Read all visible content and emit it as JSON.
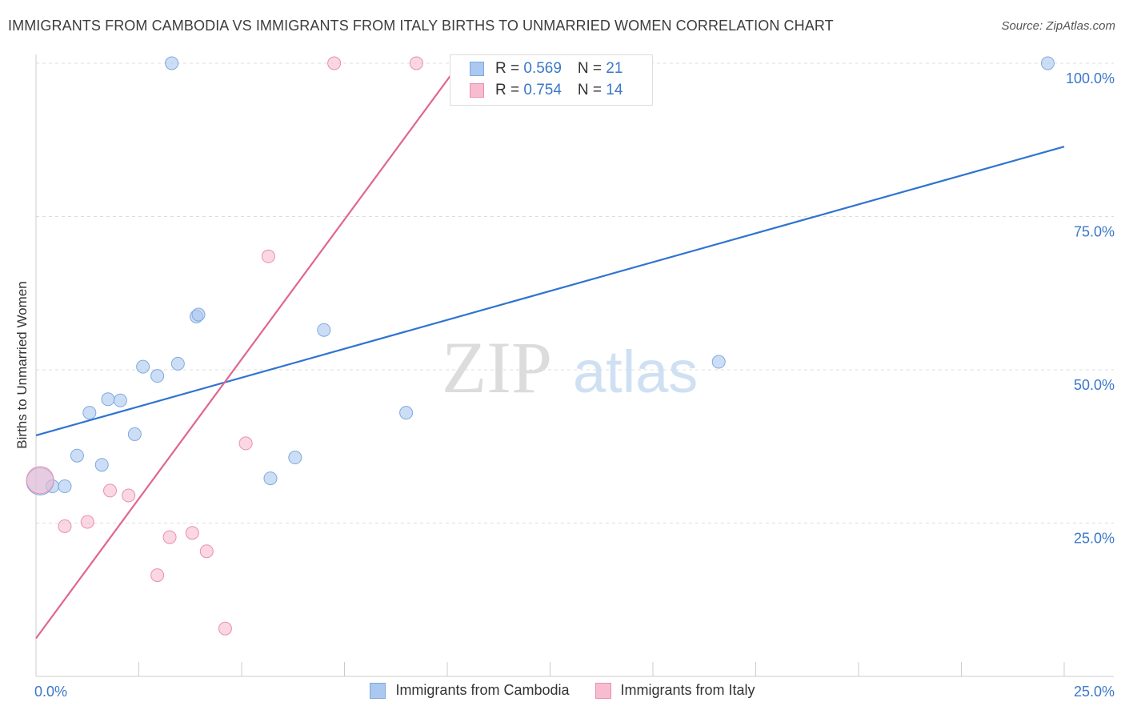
{
  "title": "IMMIGRANTS FROM CAMBODIA VS IMMIGRANTS FROM ITALY BIRTHS TO UNMARRIED WOMEN CORRELATION CHART",
  "source": "Source: ZipAtlas.com",
  "watermark": {
    "zip": "ZIP",
    "atlas": "atlas"
  },
  "legend": [
    {
      "r_label": "R = ",
      "r_value": "0.569",
      "n_label": "N = ",
      "n_value": "21",
      "color": "#aac8f0",
      "border": "#7fa9de"
    },
    {
      "r_label": "R = ",
      "r_value": "0.754",
      "n_label": "N = ",
      "n_value": "14",
      "color": "#f7bcd0",
      "border": "#e98fae"
    }
  ],
  "bottom_legend": [
    "Immigrants from Cambodia",
    "Immigrants from Italy"
  ],
  "chart_data": {
    "type": "scatter",
    "title": "IMMIGRANTS FROM CAMBODIA VS IMMIGRANTS FROM ITALY BIRTHS TO UNMARRIED WOMEN CORRELATION CHART",
    "xlabel": "",
    "ylabel": "Births to Unmarried Women",
    "xlim": [
      0,
      25
    ],
    "ylim": [
      0,
      102
    ],
    "x_tick_labels": [
      {
        "value": 0,
        "label": "0.0%"
      },
      {
        "value": 25,
        "label": "25.0%"
      }
    ],
    "y_tick_labels": [
      {
        "value": 100,
        "label": "100.0%"
      },
      {
        "value": 75,
        "label": "75.0%"
      },
      {
        "value": 50,
        "label": "50.0%"
      },
      {
        "value": 25,
        "label": "25.0%"
      }
    ],
    "series": [
      {
        "name": "Immigrants from Cambodia",
        "color": "#aac8f0",
        "stroke": "#7fa9de",
        "line_color": "#2f74d0",
        "points": [
          {
            "x": 0.1,
            "y": 31.8,
            "big": true
          },
          {
            "x": 0.4,
            "y": 31.0
          },
          {
            "x": 0.7,
            "y": 31.0
          },
          {
            "x": 1.0,
            "y": 36.0
          },
          {
            "x": 1.3,
            "y": 43.0
          },
          {
            "x": 1.6,
            "y": 34.5
          },
          {
            "x": 1.75,
            "y": 45.2
          },
          {
            "x": 2.05,
            "y": 45.0
          },
          {
            "x": 2.4,
            "y": 39.5
          },
          {
            "x": 2.6,
            "y": 50.5
          },
          {
            "x": 2.95,
            "y": 49.0
          },
          {
            "x": 3.3,
            "y": 100.0
          },
          {
            "x": 3.45,
            "y": 51.0
          },
          {
            "x": 3.9,
            "y": 58.7
          },
          {
            "x": 3.95,
            "y": 59.0
          },
          {
            "x": 5.7,
            "y": 32.3
          },
          {
            "x": 6.3,
            "y": 35.7
          },
          {
            "x": 7.0,
            "y": 56.5
          },
          {
            "x": 9.0,
            "y": 43.0
          },
          {
            "x": 16.6,
            "y": 51.3
          },
          {
            "x": 24.6,
            "y": 100.0
          }
        ],
        "trend": {
          "x0": 0,
          "y0": 39.3,
          "x1": 25,
          "y1": 86.4
        }
      },
      {
        "name": "Immigrants from Italy",
        "color": "#f7bcd0",
        "stroke": "#e98fae",
        "line_color": "#e06690",
        "points": [
          {
            "x": 0.1,
            "y": 32.0,
            "big": true
          },
          {
            "x": 0.7,
            "y": 24.5
          },
          {
            "x": 1.25,
            "y": 25.2
          },
          {
            "x": 1.8,
            "y": 30.3
          },
          {
            "x": 2.25,
            "y": 29.5
          },
          {
            "x": 2.95,
            "y": 16.5
          },
          {
            "x": 3.25,
            "y": 22.7
          },
          {
            "x": 3.8,
            "y": 23.4
          },
          {
            "x": 4.15,
            "y": 20.4
          },
          {
            "x": 4.6,
            "y": 7.8
          },
          {
            "x": 5.1,
            "y": 38.0
          },
          {
            "x": 5.65,
            "y": 68.5
          },
          {
            "x": 7.25,
            "y": 100.0
          },
          {
            "x": 9.25,
            "y": 100.0
          }
        ],
        "trend": {
          "x0": 0,
          "y0": 6.2,
          "x1": 10.3,
          "y1": 100.0
        }
      }
    ]
  }
}
